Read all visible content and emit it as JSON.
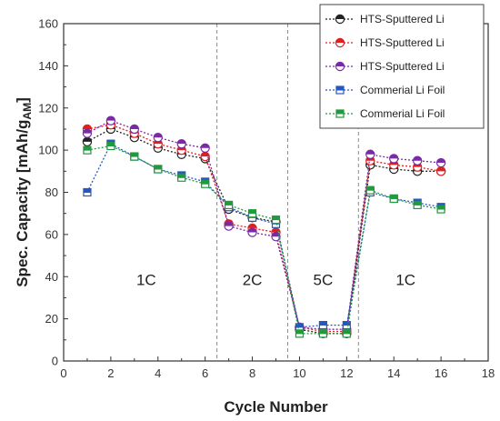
{
  "chart_data": {
    "type": "line",
    "xlabel": "Cycle Number",
    "ylabel": "Spec. Capacity [mAh/g",
    "ylabel_sub": "AM",
    "ylabel_end": "]",
    "xlim": [
      0,
      18
    ],
    "ylim": [
      0,
      160
    ],
    "xticks": [
      0,
      2,
      4,
      6,
      8,
      10,
      12,
      14,
      16,
      18
    ],
    "yticks": [
      0,
      20,
      40,
      60,
      80,
      100,
      120,
      140,
      160
    ],
    "grid": false,
    "legend_position": "top-right",
    "regions": [
      {
        "label": "1C",
        "label_x": 3.5,
        "boundary_end": 6.5
      },
      {
        "label": "2C",
        "label_x": 8.0,
        "boundary_end": 9.5
      },
      {
        "label": "5C",
        "label_x": 11.0,
        "boundary_end": 12.5
      },
      {
        "label": "1C",
        "label_x": 14.5
      }
    ],
    "x": [
      1,
      2,
      3,
      4,
      5,
      6,
      7,
      8,
      9,
      10,
      11,
      12,
      13,
      14,
      15,
      16
    ],
    "series": [
      {
        "name": "HTS-Sputtered Li",
        "marker": "circle",
        "color": "#222222",
        "values": [
          104,
          110,
          106,
          101,
          98,
          96,
          72,
          68,
          66,
          15,
          13,
          13,
          93,
          91,
          90,
          90
        ]
      },
      {
        "name": "HTS-Sputtered Li",
        "marker": "circle",
        "color": "#e02020",
        "values": [
          110,
          112,
          108,
          103,
          100,
          97,
          65,
          63,
          61,
          16,
          14,
          14,
          95,
          93,
          92,
          90
        ]
      },
      {
        "name": "HTS-Sputtered Li",
        "marker": "circle",
        "color": "#7a2aa8",
        "values": [
          108,
          114,
          110,
          106,
          103,
          101,
          64,
          61,
          59,
          16,
          15,
          15,
          98,
          96,
          95,
          94
        ]
      },
      {
        "name": "Commerial Li Foil",
        "marker": "square",
        "color": "#2457c5",
        "values": [
          80,
          103,
          97,
          91,
          88,
          85,
          73,
          68,
          65,
          16,
          17,
          17,
          80,
          77,
          75,
          73
        ]
      },
      {
        "name": "Commerial Li Foil",
        "marker": "square",
        "color": "#1f9a3c",
        "values": [
          100,
          102,
          97,
          91,
          87,
          84,
          74,
          70,
          67,
          13,
          13,
          13,
          81,
          77,
          74,
          72
        ]
      }
    ]
  }
}
